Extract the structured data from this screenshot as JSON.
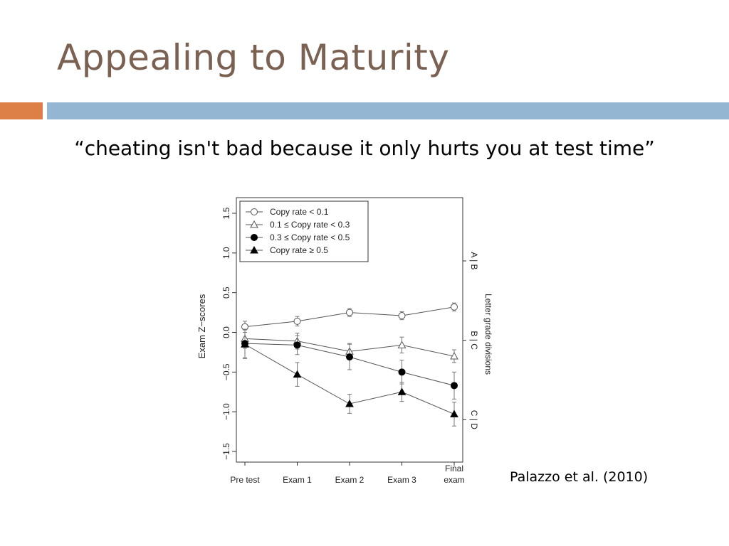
{
  "slide": {
    "title": "Appealing to Maturity",
    "quote": "“cheating isn't bad because it only hurts you at test time”",
    "citation": "Palazzo et al. (2010)",
    "accent_colors": {
      "title": "#7a6152",
      "bar_orange": "#dd8047",
      "bar_blue": "#94b6d2"
    }
  },
  "chart_data": {
    "type": "line",
    "ylabel": "Exam Z−scores",
    "right_label": "Letter grade divisions",
    "ylim": [
      -1.5,
      1.5
    ],
    "yticks": [
      "-1.5",
      "-1.0",
      "-0.5",
      "0.0",
      "0.5",
      "1.0",
      "1.5"
    ],
    "categories": [
      "Pre test",
      "Exam 1",
      "Exam 2",
      "Exam 3",
      "Final exam"
    ],
    "category_labels": [
      [
        "Pre test"
      ],
      [
        "Exam 1"
      ],
      [
        "Exam 2"
      ],
      [
        "Exam 3"
      ],
      [
        "Final",
        "exam"
      ]
    ],
    "grade_divisions": [
      {
        "label": "A | B",
        "y": 0.9
      },
      {
        "label": "B | C",
        "y": -0.1
      },
      {
        "label": "C | D",
        "y": -1.1
      }
    ],
    "legend_position": "top-left",
    "series": [
      {
        "name": "Copy rate < 0.1",
        "marker": "open-circle",
        "values": [
          0.07,
          0.14,
          0.25,
          0.21,
          0.32
        ],
        "err": [
          0.07,
          0.06,
          0.05,
          0.05,
          0.05
        ]
      },
      {
        "name": "0.1 ≤ Copy rate < 0.3",
        "marker": "open-triangle",
        "values": [
          -0.08,
          -0.11,
          -0.24,
          -0.16,
          -0.3
        ],
        "err": [
          0.12,
          0.1,
          0.1,
          0.1,
          0.08
        ]
      },
      {
        "name": "0.3 ≤ Copy rate < 0.5",
        "marker": "filled-circle",
        "values": [
          -0.14,
          -0.16,
          -0.31,
          -0.5,
          -0.67
        ],
        "err": [
          0.18,
          0.12,
          0.16,
          0.15,
          0.17
        ]
      },
      {
        "name": "Copy rate ≥ 0.5",
        "marker": "filled-triangle",
        "values": [
          -0.15,
          -0.53,
          -0.9,
          -0.75,
          -1.03
        ],
        "err": [
          0.18,
          0.15,
          0.12,
          0.12,
          0.15
        ]
      }
    ]
  }
}
